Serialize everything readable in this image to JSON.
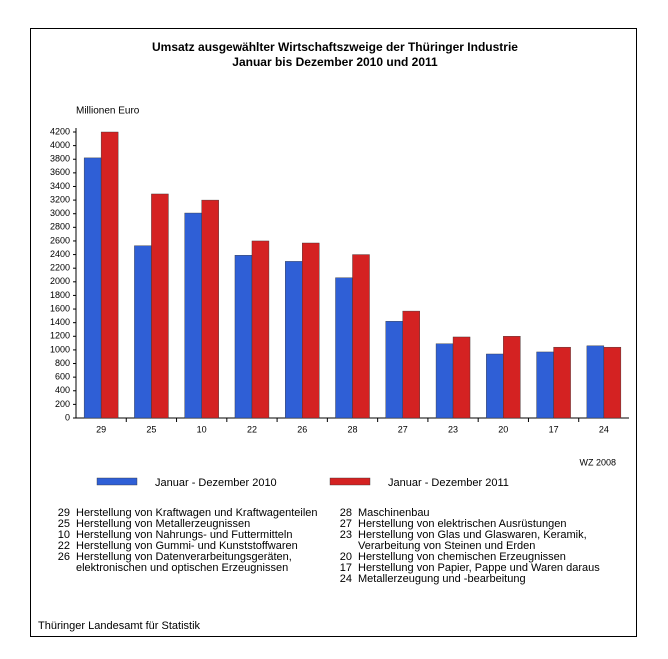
{
  "chart_data": {
    "type": "bar",
    "title": "Umsatz ausgewählter Wirtschaftszweige der Thüringer Industrie",
    "subtitle": "Januar bis Dezember 2010 und 2011",
    "y_label": "Millionen Euro",
    "categories": [
      "29",
      "25",
      "10",
      "22",
      "26",
      "28",
      "27",
      "23",
      "20",
      "17",
      "24"
    ],
    "series": [
      {
        "name": "Januar - Dezember 2010",
        "color": "#2f5fd6",
        "values": [
          3820,
          2530,
          3010,
          2390,
          2300,
          2060,
          1420,
          1090,
          940,
          970,
          1060
        ]
      },
      {
        "name": "Januar - Dezember  2011",
        "color": "#d42222",
        "values": [
          4200,
          3290,
          3200,
          2600,
          2570,
          2400,
          1570,
          1190,
          1200,
          1040,
          1040
        ]
      }
    ],
    "ylim": [
      0,
      4200
    ],
    "yticks": [
      0,
      200,
      400,
      600,
      800,
      1000,
      1200,
      1400,
      1600,
      1800,
      2000,
      2200,
      2400,
      2600,
      2800,
      3000,
      3200,
      3400,
      3600,
      3800,
      4000,
      4200
    ],
    "grid": false,
    "classification": "WZ 2008",
    "notes_left": [
      {
        "code": "29",
        "text": "Herstellung von Kraftwagen und Kraftwagenteilen"
      },
      {
        "code": "25",
        "text": "Herstellung von Metallerzeugnissen"
      },
      {
        "code": "10",
        "text": "Herstellung von Nahrungs- und Futtermitteln"
      },
      {
        "code": "22",
        "text": "Herstellung von Gummi- und  Kunststoffwaren"
      },
      {
        "code": "26",
        "text": "Herstellung von Datenverarbeitungsgeräten, elektronischen und optischen Erzeugnissen"
      }
    ],
    "notes_right": [
      {
        "code": "28",
        "text": "Maschinenbau"
      },
      {
        "code": "27",
        "text": "Herstellung von elektrischen Ausrüstungen"
      },
      {
        "code": "23",
        "text": "Herstellung von Glas und Glaswaren, Keramik, Verarbeitung von Steinen und Erden"
      },
      {
        "code": "20",
        "text": "Herstellung von chemischen Erzeugnissen"
      },
      {
        "code": "17",
        "text": "Herstellung von Papier, Pappe und Waren daraus"
      },
      {
        "code": "24",
        "text": "Metallerzeugung und -bearbeitung"
      }
    ],
    "source": "Thüringer Landesamt für Statistik"
  }
}
